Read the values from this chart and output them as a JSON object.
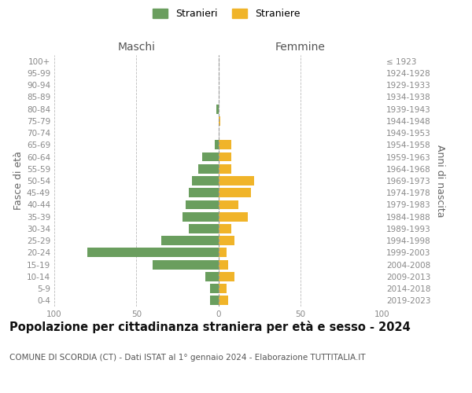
{
  "age_groups_bottom_to_top": [
    "0-4",
    "5-9",
    "10-14",
    "15-19",
    "20-24",
    "25-29",
    "30-34",
    "35-39",
    "40-44",
    "45-49",
    "50-54",
    "55-59",
    "60-64",
    "65-69",
    "70-74",
    "75-79",
    "80-84",
    "85-89",
    "90-94",
    "95-99",
    "100+"
  ],
  "birth_years_bottom_to_top": [
    "2019-2023",
    "2014-2018",
    "2009-2013",
    "2004-2008",
    "1999-2003",
    "1994-1998",
    "1989-1993",
    "1984-1988",
    "1979-1983",
    "1974-1978",
    "1969-1973",
    "1964-1968",
    "1959-1963",
    "1954-1958",
    "1949-1953",
    "1944-1948",
    "1939-1943",
    "1934-1938",
    "1929-1933",
    "1924-1928",
    "≤ 1923"
  ],
  "maschi_bottom_to_top": [
    5,
    5,
    8,
    40,
    80,
    35,
    18,
    22,
    20,
    18,
    16,
    12,
    10,
    2,
    0,
    0,
    1,
    0,
    0,
    0,
    0
  ],
  "femmine_bottom_to_top": [
    6,
    5,
    10,
    6,
    5,
    10,
    8,
    18,
    12,
    20,
    22,
    8,
    8,
    8,
    0,
    1,
    0,
    0,
    0,
    0,
    0
  ],
  "maschi_color": "#6a9e5e",
  "femmine_color": "#f0b429",
  "bg_color": "#ffffff",
  "grid_color": "#bbbbbb",
  "title": "Popolazione per cittadinanza straniera per età e sesso - 2024",
  "subtitle": "COMUNE DI SCORDIA (CT) - Dati ISTAT al 1° gennaio 2024 - Elaborazione TUTTITALIA.IT",
  "ylabel_left": "Fasce di età",
  "ylabel_right": "Anni di nascita",
  "xlabel_left": "Maschi",
  "xlabel_right": "Femmine",
  "legend_maschi": "Stranieri",
  "legend_femmine": "Straniere",
  "xlim": 100,
  "title_fontsize": 10.5,
  "subtitle_fontsize": 7.5,
  "label_fontsize": 9,
  "tick_fontsize": 7.5
}
